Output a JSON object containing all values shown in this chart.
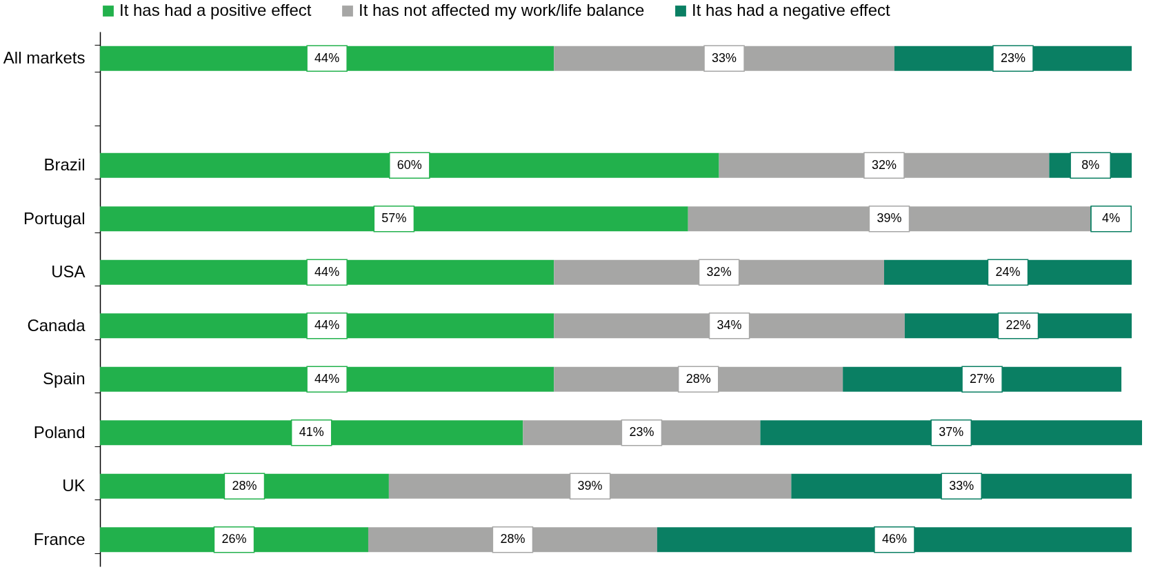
{
  "chart_data": {
    "type": "bar",
    "orientation": "horizontal",
    "stacked": true,
    "legend": "top",
    "tick_labels": "y",
    "categories": [
      "All markets",
      null,
      "Brazil",
      "Portugal",
      "USA",
      "Canada",
      "Spain",
      "Poland",
      "UK",
      "France"
    ],
    "series": [
      {
        "name": "It has had a positive effect",
        "color": "#22b14c",
        "values": [
          44,
          null,
          60,
          57,
          44,
          44,
          44,
          41,
          28,
          26
        ],
        "value_labels": [
          "44%",
          null,
          "60%",
          "57%",
          "44%",
          "44%",
          "44%",
          "41%",
          "28%",
          "26%"
        ]
      },
      {
        "name": "It has not affected my work/life balance",
        "color": "#a6a6a5",
        "values": [
          33,
          null,
          32,
          39,
          32,
          34,
          28,
          23,
          39,
          28
        ],
        "value_labels": [
          "33%",
          null,
          "32%",
          "39%",
          "32%",
          "34%",
          "28%",
          "23%",
          "39%",
          "28%"
        ]
      },
      {
        "name": "It has had a negative effect",
        "color": "#0a7f63",
        "values": [
          23,
          null,
          8,
          4,
          24,
          22,
          27,
          37,
          33,
          46
        ],
        "value_labels": [
          "23%",
          null,
          "8%",
          "4%",
          "24%",
          "22%",
          "27%",
          "37%",
          "33%",
          "46%"
        ]
      }
    ]
  }
}
